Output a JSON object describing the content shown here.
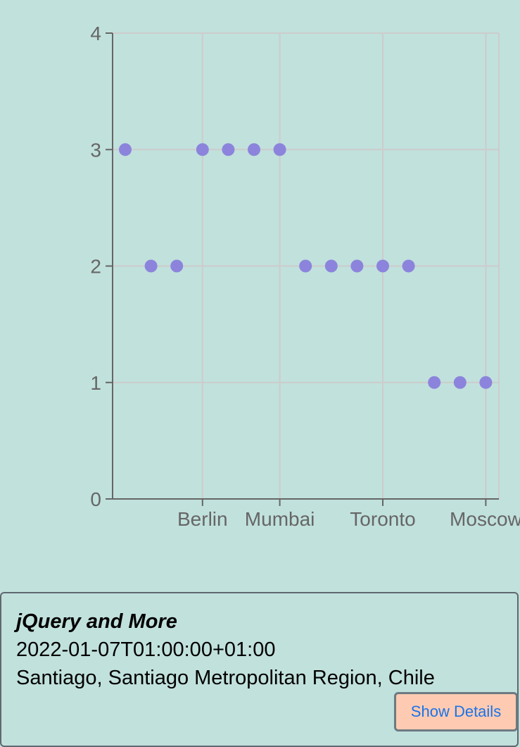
{
  "chart_data": {
    "type": "scatter",
    "title": "",
    "xlabel": "",
    "ylabel": "",
    "ylim": [
      0,
      4
    ],
    "yticks": [
      0,
      1,
      2,
      3,
      4
    ],
    "x_tick_labels": [
      "Berlin",
      "Mumbai",
      "Toronto",
      "Moscow"
    ],
    "grid": true,
    "series": [
      {
        "color": "#8c84dc",
        "values": [
          3,
          2,
          2,
          3,
          3,
          3,
          3,
          2,
          2,
          2,
          2,
          2,
          1,
          1,
          1
        ]
      }
    ]
  },
  "card": {
    "title": "jQuery and More",
    "datetime": "2022-01-07T01:00:00+01:00",
    "location": "Santiago, Santiago Metropolitan Region, Chile",
    "button_label": "Show Details"
  }
}
